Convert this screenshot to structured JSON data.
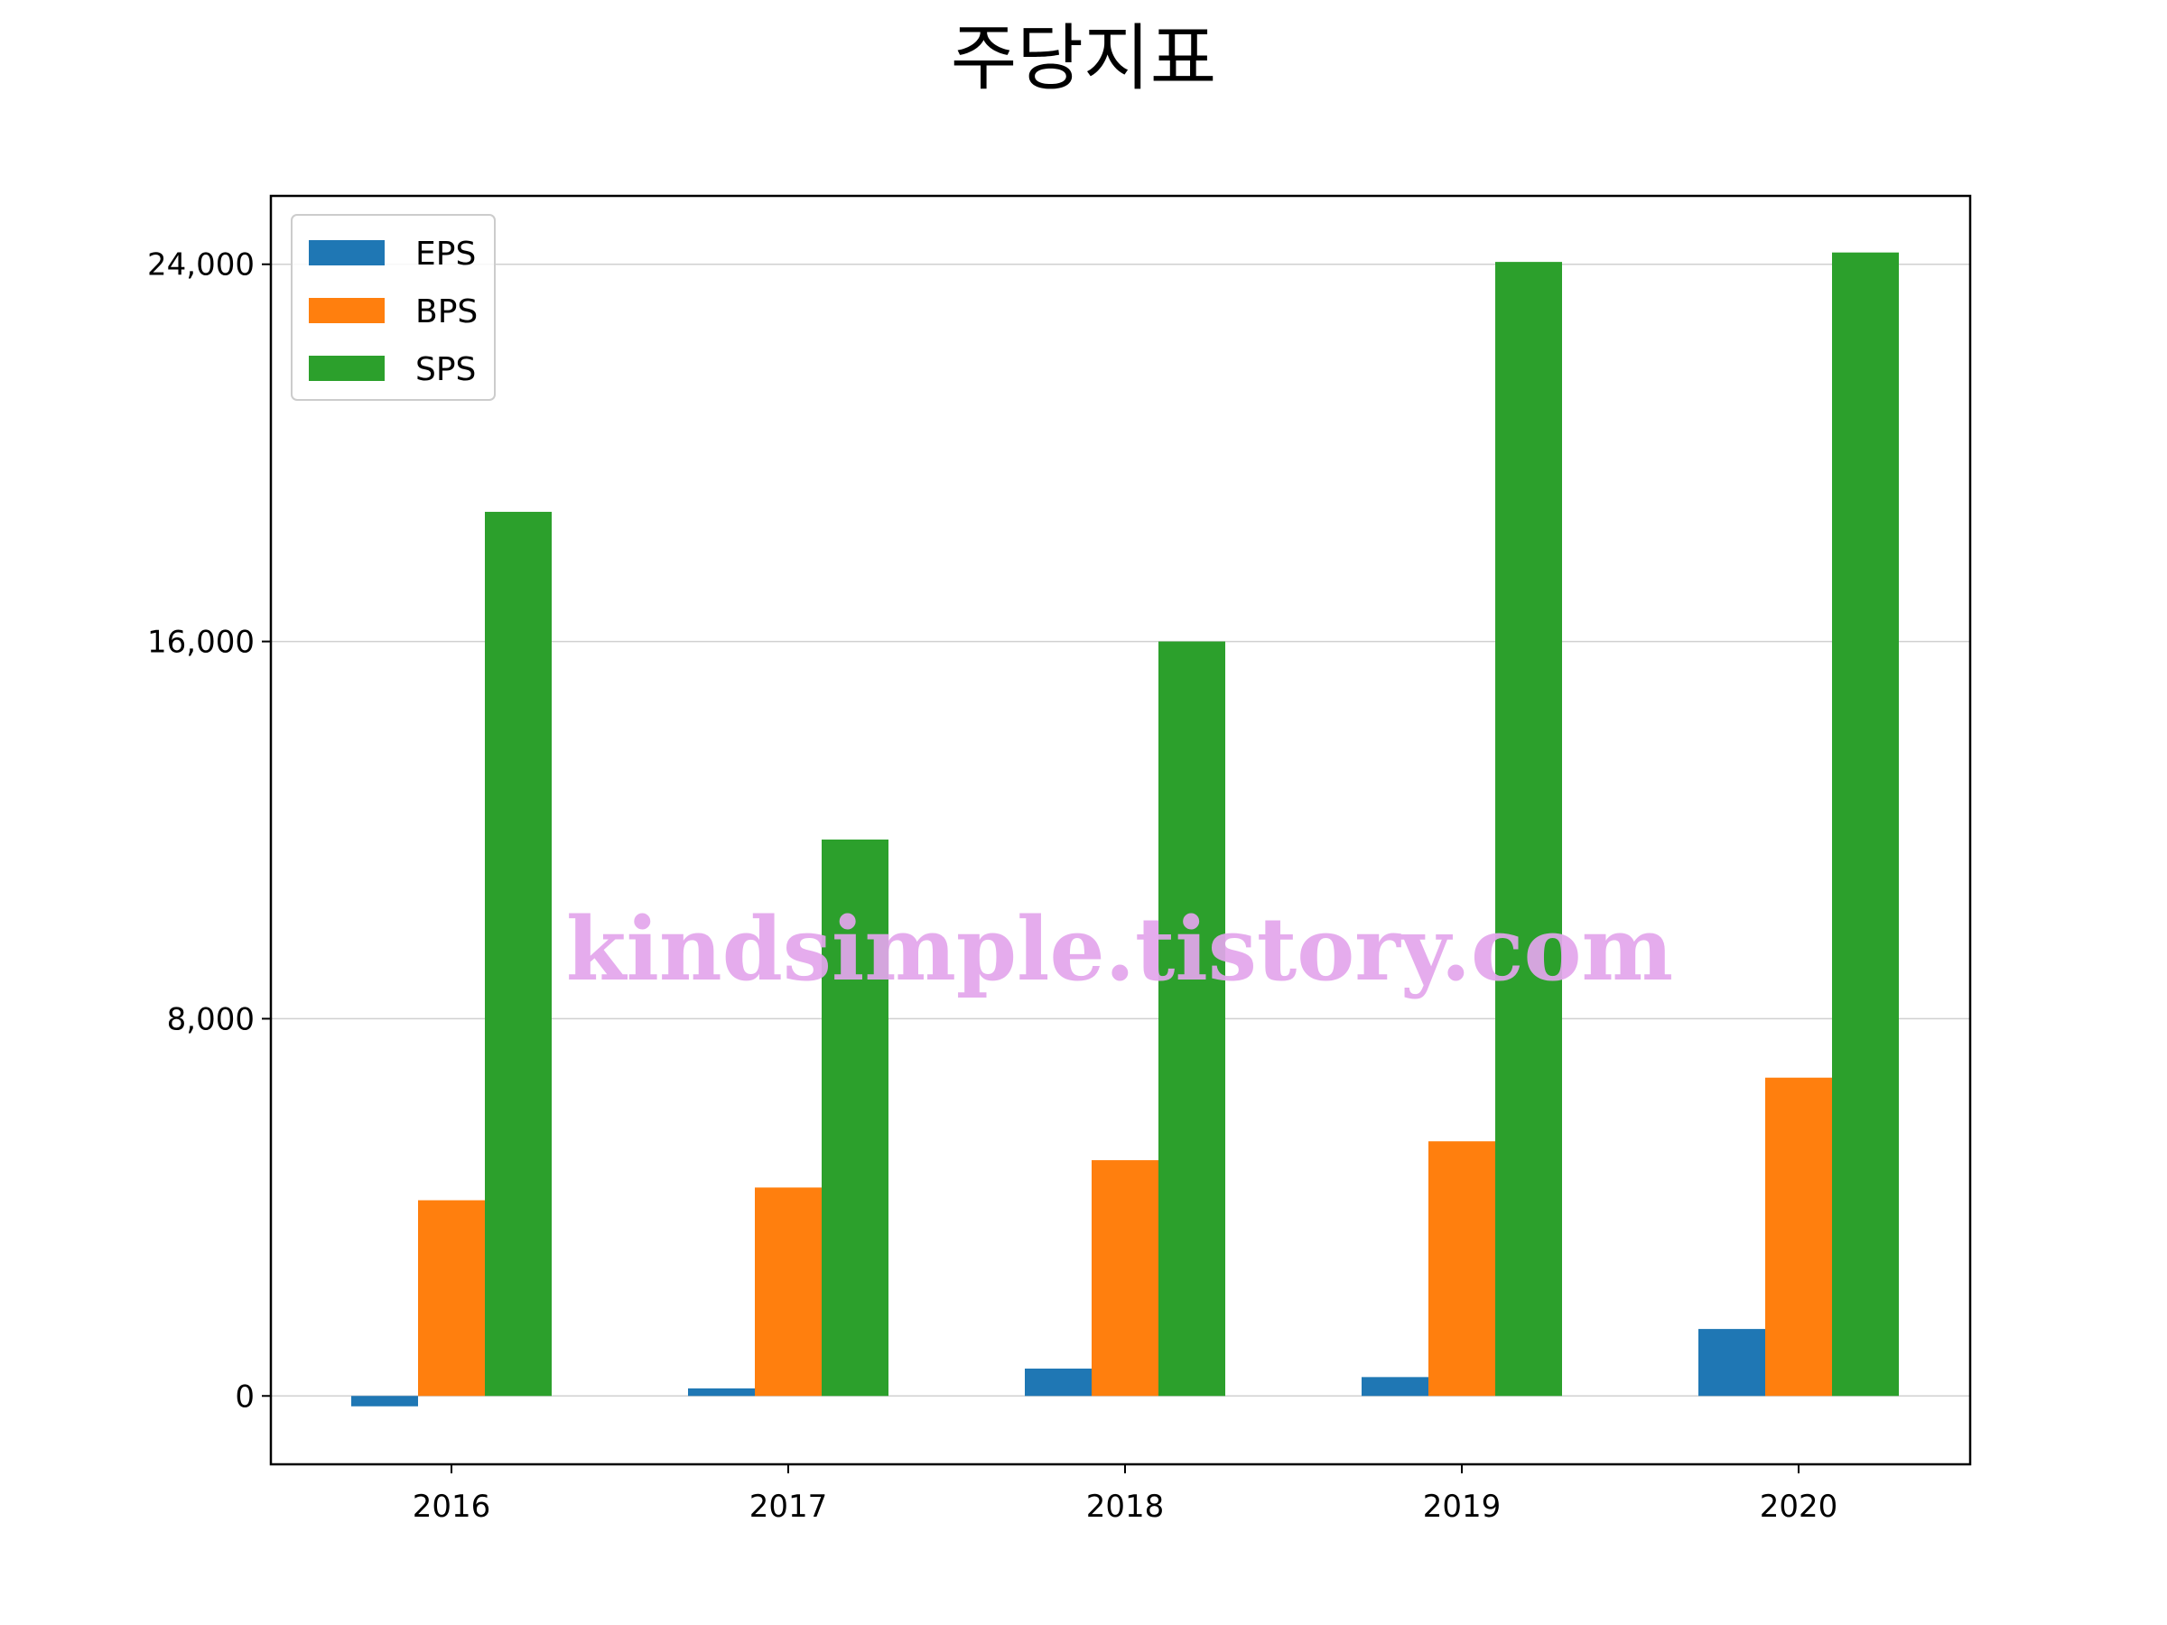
{
  "chart_data": {
    "type": "bar",
    "title": "주당지표",
    "xlabel": "",
    "ylabel": "",
    "categories": [
      "2016",
      "2017",
      "2018",
      "2019",
      "2020"
    ],
    "series": [
      {
        "name": "EPS",
        "color": "#1f77b4",
        "values": [
          -220,
          160,
          580,
          400,
          1420
        ]
      },
      {
        "name": "BPS",
        "color": "#ff7f0e",
        "values": [
          4150,
          4420,
          5000,
          5400,
          6750
        ]
      },
      {
        "name": "SPS",
        "color": "#2ca02c",
        "values": [
          18750,
          11800,
          16000,
          24050,
          24250
        ]
      }
    ],
    "ylim": [
      -1450,
      25450
    ],
    "yticks": [
      0,
      8000,
      16000,
      24000
    ],
    "ytick_labels": [
      "0",
      "8,000",
      "16,000",
      "24,000"
    ],
    "grid": "y",
    "legend": {
      "placement": "top-left"
    },
    "watermark": "kindsimple.tistory.com"
  }
}
